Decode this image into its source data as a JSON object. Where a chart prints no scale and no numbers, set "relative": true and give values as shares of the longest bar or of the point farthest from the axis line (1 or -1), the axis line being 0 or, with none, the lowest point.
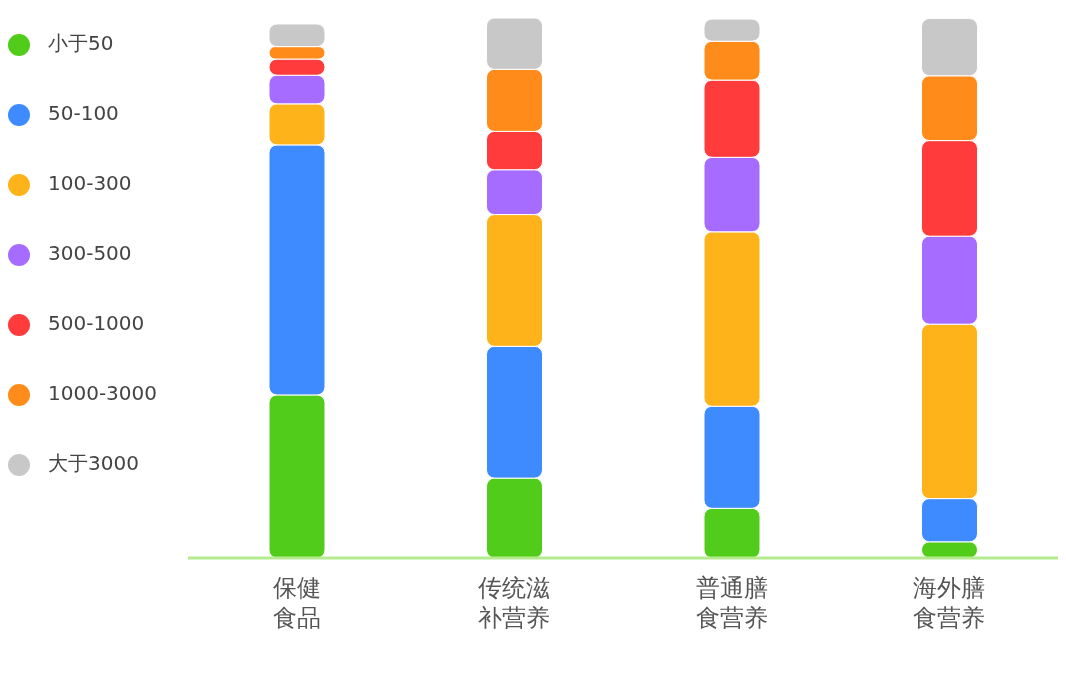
{
  "chart_data": {
    "type": "bar",
    "stacked": true,
    "relative": true,
    "legend": "left",
    "grid": false,
    "categories": [
      "保健食品",
      "传统滋补营养",
      "普通膳食营养",
      "海外膳食营养"
    ],
    "series": [
      {
        "name": "小于50",
        "color": "#52cc1a",
        "values": [
          0.302,
          0.148,
          0.092,
          0.03
        ]
      },
      {
        "name": "50-100",
        "color": "#3d8bff",
        "values": [
          0.463,
          0.244,
          0.189,
          0.08
        ]
      },
      {
        "name": "100-300",
        "color": "#ffb31a",
        "values": [
          0.076,
          0.244,
          0.323,
          0.323
        ]
      },
      {
        "name": "300-500",
        "color": "#a66bff",
        "values": [
          0.053,
          0.083,
          0.138,
          0.163
        ]
      },
      {
        "name": "500-1000",
        "color": "#ff3b3b",
        "values": [
          0.03,
          0.071,
          0.143,
          0.177
        ]
      },
      {
        "name": "1000-3000",
        "color": "#ff8c1a",
        "values": [
          0.023,
          0.115,
          0.072,
          0.12
        ]
      },
      {
        "name": "大于3000",
        "color": "#c8c8c8",
        "values": [
          0.042,
          0.095,
          0.041,
          0.106
        ]
      }
    ]
  }
}
